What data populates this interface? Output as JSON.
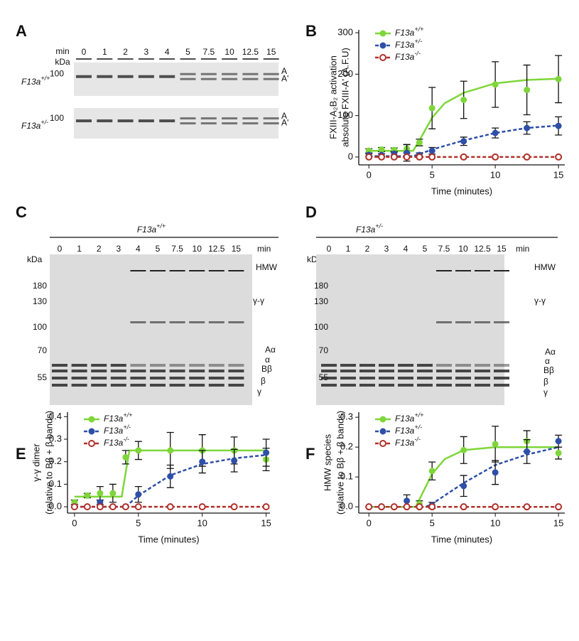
{
  "panel_labels": [
    "A",
    "B",
    "C",
    "D",
    "E",
    "F"
  ],
  "gel_a": {
    "unit_min": "min",
    "unit_kda": "kDa",
    "lanes": [
      "0",
      "1",
      "2",
      "3",
      "4",
      "5",
      "7.5",
      "10",
      "12.5",
      "15"
    ],
    "rows": [
      {
        "genotype": "F13a",
        "genotype_sup": "+/+",
        "marker": "100",
        "bands": [
          "A",
          "A'"
        ]
      },
      {
        "genotype": "F13a",
        "genotype_sup": "+/-",
        "marker": "100",
        "bands": [
          "A",
          "A'"
        ]
      }
    ]
  },
  "gel_c": {
    "genotype": "F13a",
    "genotype_sup": "+/+",
    "unit_min": "min",
    "unit_kda": "kDa",
    "lanes": [
      "0",
      "1",
      "2",
      "3",
      "4",
      "5",
      "7.5",
      "10",
      "12.5",
      "15"
    ],
    "markers": [
      "180",
      "130",
      "100",
      "70",
      "55"
    ],
    "bands": [
      "HMW",
      "γ-γ",
      "Aα",
      "α",
      "Bβ",
      "β",
      "γ"
    ]
  },
  "gel_d": {
    "genotype": "F13a",
    "genotype_sup": "+/-",
    "unit_min": "min",
    "unit_kda": "kDa",
    "lanes": [
      "0",
      "1",
      "2",
      "3",
      "4",
      "5",
      "7.5",
      "10",
      "12.5",
      "15"
    ],
    "markers": [
      "180",
      "130",
      "100",
      "70",
      "55"
    ],
    "bands": [
      "HMW",
      "γ-γ",
      "Aα",
      "α",
      "Bβ",
      "β",
      "γ"
    ]
  },
  "chart_data": [
    {
      "type": "line",
      "x_label": "Time (minutes)",
      "y_label": [
        "FXIII-A₂B₂ activation",
        "absolute FXIII-A' (A.F.U)"
      ],
      "xlim": [
        -0.8,
        15.5
      ],
      "xticks": [
        0,
        5,
        10,
        15
      ],
      "ylim": [
        -19,
        307
      ],
      "yticks": [
        0,
        100,
        200,
        300
      ],
      "legend": "upper left",
      "x": [
        0,
        1,
        2,
        3,
        4,
        5,
        7.5,
        10,
        12.5,
        15
      ],
      "series": [
        {
          "name": "F13a",
          "name_sup": "+/+",
          "color": "#7ed63a",
          "linestyle": "solid",
          "marker": "filled",
          "values": [
            15,
            18,
            17,
            20,
            35,
            118,
            138,
            175,
            162,
            188
          ],
          "errors": [
            5,
            5,
            5,
            10,
            8,
            50,
            45,
            55,
            60,
            57
          ],
          "fit": {
            "x": [
              0,
              3.5,
              4,
              5,
              6,
              7.5,
              10,
              12.5,
              15
            ],
            "values": [
              15,
              15,
              40,
              95,
              130,
              155,
              178,
              186,
              189
            ]
          }
        },
        {
          "name": "F13a",
          "name_sup": "+/-",
          "color": "#2e4fa8",
          "linestyle": "dashed",
          "marker": "filled",
          "values": [
            5,
            5,
            8,
            10,
            5,
            15,
            38,
            58,
            70,
            75
          ],
          "errors": [
            3,
            3,
            5,
            20,
            5,
            8,
            10,
            12,
            15,
            22
          ],
          "fit": {
            "x": [
              0,
              3.5,
              5,
              7.5,
              10,
              12.5,
              15
            ],
            "values": [
              2,
              2,
              18,
              40,
              58,
              70,
              76
            ]
          }
        },
        {
          "name": "F13a",
          "name_sup": "-/-",
          "color": "#b0302a",
          "linestyle": "dashed",
          "marker": "open",
          "values": [
            0,
            0,
            0,
            0,
            0,
            0,
            0,
            0,
            0,
            0
          ],
          "fit": {
            "x": [
              0,
              15
            ],
            "values": [
              0,
              0
            ]
          }
        }
      ]
    },
    {
      "type": "line",
      "x_label": "Time (minutes)",
      "y_label": [
        "γ-γ dimer",
        "(relative to Bβ + β bands)"
      ],
      "xlim": [
        -0.55,
        15.3
      ],
      "xticks": [
        0,
        5,
        10,
        15
      ],
      "ylim": [
        -0.028,
        0.42
      ],
      "yticks": [
        {
          "value": 0,
          "label": "0.0"
        },
        0.1,
        0.2,
        0.3,
        0.4
      ],
      "legend": "upper left",
      "x": [
        0,
        1,
        2,
        3,
        4,
        5,
        7.5,
        10,
        12.5,
        15
      ],
      "series": [
        {
          "name": "F13a",
          "name_sup": "+/+",
          "color": "#7ed63a",
          "linestyle": "solid",
          "marker": "filled",
          "values": [
            0.02,
            0.05,
            0.06,
            0.06,
            0.22,
            0.25,
            0.25,
            0.25,
            0.25,
            0.21
          ],
          "errors": [
            0.01,
            0.01,
            0.03,
            0.04,
            0.03,
            0.04,
            0.08,
            0.07,
            0.06,
            0.05
          ],
          "fit": {
            "x": [
              0,
              3.7,
              4,
              4.3,
              15
            ],
            "values": [
              0.045,
              0.045,
              0.15,
              0.25,
              0.25
            ]
          }
        },
        {
          "name": "F13a",
          "name_sup": "+/-",
          "color": "#2e4fa8",
          "linestyle": "dashed",
          "marker": "filled",
          "values": [
            0,
            0,
            0.02,
            0,
            0,
            0.055,
            0.135,
            0.2,
            0.205,
            0.24
          ],
          "errors": [
            0,
            0,
            0.01,
            0,
            0,
            0.035,
            0.05,
            0.05,
            0.05,
            0.06
          ],
          "fit": {
            "x": [
              0,
              4,
              5,
              7.5,
              10,
              12.5,
              15
            ],
            "values": [
              0,
              0,
              0.05,
              0.14,
              0.19,
              0.215,
              0.23
            ]
          }
        },
        {
          "name": "F13a",
          "name_sup": "-/-",
          "color": "#b0302a",
          "linestyle": "dashed",
          "marker": "open",
          "values": [
            0,
            0,
            0,
            0,
            0,
            0,
            0,
            0,
            0,
            0
          ],
          "fit": {
            "x": [
              0,
              15
            ],
            "values": [
              0,
              0
            ]
          }
        }
      ]
    },
    {
      "type": "line",
      "x_label": "Time (minutes)",
      "y_label": [
        "HMW species",
        "(relative to Bβ + β bands)"
      ],
      "xlim": [
        -0.8,
        15.5
      ],
      "xticks": [
        0,
        5,
        10,
        15
      ],
      "ylim": [
        -0.021,
        0.317
      ],
      "yticks": [
        {
          "value": 0,
          "label": "0.0"
        },
        0.1,
        0.2,
        0.3
      ],
      "legend": "upper left",
      "x": [
        0,
        1,
        2,
        3,
        4,
        5,
        7.5,
        10,
        12.5,
        15
      ],
      "series": [
        {
          "name": "F13a",
          "name_sup": "+/+",
          "color": "#7ed63a",
          "linestyle": "solid",
          "marker": "filled",
          "values": [
            0,
            0,
            0,
            0,
            0.01,
            0.12,
            0.19,
            0.21,
            0.22,
            0.18
          ],
          "errors": [
            0,
            0,
            0,
            0,
            0.01,
            0.03,
            0.045,
            0.06,
            0.035,
            0.02
          ],
          "fit": {
            "x": [
              0,
              3.7,
              5,
              6,
              7.5,
              10,
              12.5,
              15
            ],
            "values": [
              0,
              0,
              0.11,
              0.16,
              0.19,
              0.2,
              0.2,
              0.2
            ]
          }
        },
        {
          "name": "F13a",
          "name_sup": "+/-",
          "color": "#2e4fa8",
          "linestyle": "dashed",
          "marker": "filled",
          "values": [
            0,
            0,
            0,
            0.02,
            0,
            0.005,
            0.07,
            0.115,
            0.185,
            0.22
          ],
          "errors": [
            0,
            0,
            0,
            0.02,
            0,
            0.01,
            0.035,
            0.04,
            0.04,
            0.02
          ],
          "fit": {
            "x": [
              0,
              4.5,
              5,
              7.5,
              10,
              12.5,
              15
            ],
            "values": [
              0,
              0,
              0.01,
              0.08,
              0.14,
              0.175,
              0.2
            ]
          }
        },
        {
          "name": "F13a",
          "name_sup": "-/-",
          "color": "#b0302a",
          "linestyle": "dashed",
          "marker": "open",
          "values": [
            0,
            0,
            0,
            0,
            0,
            0,
            0,
            0,
            0,
            0
          ],
          "fit": {
            "x": [
              0,
              15
            ],
            "values": [
              0,
              0
            ]
          }
        }
      ]
    }
  ]
}
